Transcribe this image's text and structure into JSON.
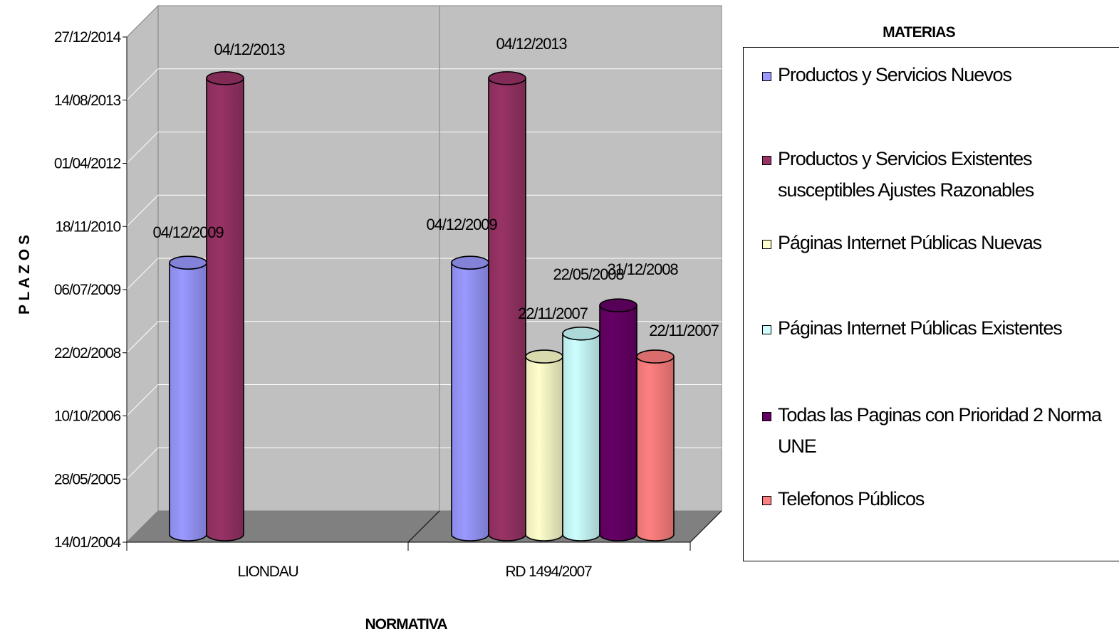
{
  "chart_data": {
    "type": "bar",
    "style": "3d-cylinder-clustered",
    "xlabel": "NORMATIVA",
    "ylabel": "P L A Z O S",
    "categories": [
      "LIONDAU",
      "RD 1494/2007"
    ],
    "y_ticks": [
      "27/12/2014",
      "14/08/2013",
      "01/04/2012",
      "18/11/2010",
      "06/07/2009",
      "22/02/2008",
      "10/10/2006",
      "28/05/2005",
      "14/01/2004"
    ],
    "ylim": [
      "14/01/2004",
      "27/12/2014"
    ],
    "grid": true,
    "legend_title": "MATERIAS",
    "legend_position": "right",
    "series": [
      {
        "name": "Productos y Servicios Nuevos",
        "color": "#9999ff",
        "values": [
          "04/12/2009",
          "04/12/2009"
        ]
      },
      {
        "name": "Productos y Servicios Existentes susceptibles Ajustes Razonables",
        "color": "#993366",
        "values": [
          "04/12/2013",
          "04/12/2013"
        ]
      },
      {
        "name": "Páginas Internet Públicas Nuevas",
        "color": "#ffffcc",
        "values": [
          null,
          "22/11/2007"
        ]
      },
      {
        "name": "Páginas Internet Públicas Existentes",
        "color": "#ccffff",
        "values": [
          null,
          "22/05/2008"
        ]
      },
      {
        "name": "Todas las Paginas con Prioridad 2 Norma UNE",
        "color": "#660066",
        "values": [
          null,
          "31/12/2008"
        ]
      },
      {
        "name": "Telefonos Públicos",
        "color": "#ff8080",
        "values": [
          null,
          "22/11/2007"
        ]
      }
    ]
  }
}
